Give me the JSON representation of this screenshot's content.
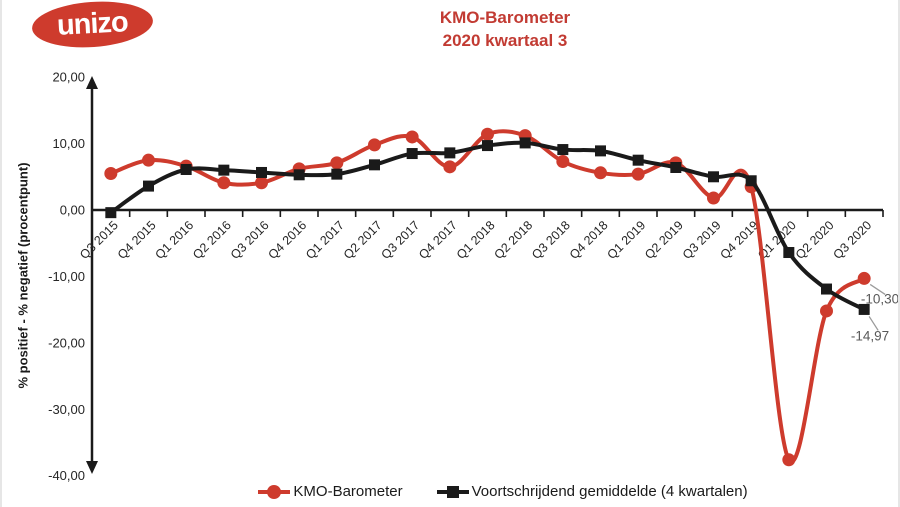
{
  "logo": {
    "text": "unizo",
    "bg_color": "#ce3b2d",
    "text_color": "#ffffff"
  },
  "title": {
    "line1": "KMO-Barometer",
    "line2": "2020 kwartaal 3",
    "color": "#c23b33"
  },
  "y_axis": {
    "title": "% positief - % negatief (procentpunt)",
    "tick_labels": [
      "20,00",
      "10,00",
      "0,00",
      "-10,00",
      "-20,00",
      "-30,00",
      "-40,00"
    ],
    "max": 20,
    "min": -40,
    "step": 10
  },
  "legend": [
    {
      "name": "KMO-Barometer",
      "color": "#ce3b2d",
      "marker": "circle"
    },
    {
      "name": "Voortschrijdend gemiddelde (4 kwartalen)",
      "color": "#1a1a1a",
      "marker": "square"
    }
  ],
  "annotations": [
    {
      "series": "KMO-Barometer",
      "label": "-10,30"
    },
    {
      "series": "Voortschrijdend gemiddelde (4 kwartalen)",
      "label": "-14,97"
    }
  ],
  "chart_data": {
    "type": "line",
    "title": "KMO-Barometer 2020 kwartaal 3",
    "ylabel": "% positief - % negatief (procentpunt)",
    "ylim": [
      -40,
      20
    ],
    "grid": false,
    "legend_position": "bottom",
    "categories": [
      "Q3 2015",
      "Q4 2015",
      "Q1 2016",
      "Q2 2016",
      "Q3 2016",
      "Q4 2016",
      "Q1 2017",
      "Q2 2017",
      "Q3 2017",
      "Q4 2017",
      "Q1 2018",
      "Q2 2018",
      "Q3 2018",
      "Q4 2018",
      "Q1 2019",
      "Q2 2019",
      "Q3 2019",
      "Q4 2019",
      "Q1 2020",
      "Q2 2020",
      "Q3 2020"
    ],
    "series": [
      {
        "name": "KMO-Barometer",
        "color": "#ce3b2d",
        "marker": "circle",
        "smooth": true,
        "values": [
          5.5,
          7.5,
          6.6,
          4.1,
          4.1,
          6.2,
          7.1,
          9.8,
          11.0,
          6.5,
          11.4,
          11.2,
          7.3,
          5.6,
          5.4,
          7.1,
          1.8,
          3.5,
          -37.6,
          -15.2,
          -10.3
        ]
      },
      {
        "name": "Voortschrijdend gemiddelde (4 kwartalen)",
        "color": "#1a1a1a",
        "marker": "square",
        "smooth": true,
        "values": [
          -0.4,
          3.6,
          6.1,
          6.0,
          5.65,
          5.3,
          5.4,
          6.8,
          8.5,
          8.6,
          9.7,
          10.1,
          9.1,
          8.9,
          7.5,
          6.4,
          5.0,
          4.4,
          -6.4,
          -11.9,
          -14.97
        ]
      }
    ],
    "end_labels": [
      "-10,30",
      "-14,97"
    ]
  }
}
